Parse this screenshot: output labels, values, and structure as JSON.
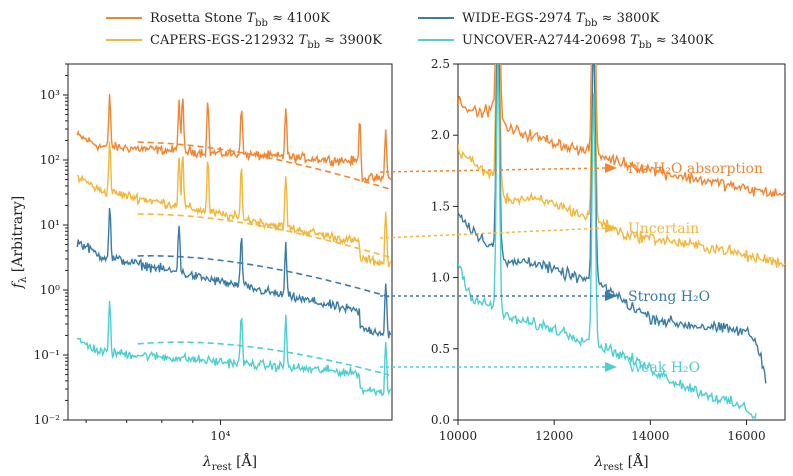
{
  "chart_data": [
    {
      "panel": "left",
      "type": "line",
      "xscale": "log",
      "yscale": "log",
      "xlabel": "λ_rest [Å]",
      "ylabel": "f_λ [Arbitrary]",
      "xlim": [
        5600,
        19200
      ],
      "ylim": [
        0.01,
        3000
      ],
      "xtick_labels": [
        {
          "value": 10000,
          "label": "10⁴"
        }
      ],
      "ytick_labels": [
        {
          "value": 0.01,
          "label": "10⁻²"
        },
        {
          "value": 0.1,
          "label": "10⁻¹"
        },
        {
          "value": 1,
          "label": "10⁰"
        },
        {
          "value": 10,
          "label": "10¹"
        },
        {
          "value": 100,
          "label": "10²"
        },
        {
          "value": 1000,
          "label": "10³"
        }
      ],
      "series": [
        {
          "name": "Rosetta Stone",
          "color": "#f4842f",
          "continuum_level": 170,
          "continuum_slope": -0.35,
          "blackbody_peak": 180,
          "blackbody_T_K": 4100,
          "emission_lines_A": [
            6563,
            8542,
            8662,
            9531,
            10830,
            12820,
            17000,
            18751
          ]
        },
        {
          "name": "CAPERS-EGS-212932",
          "color": "#f4b63b",
          "continuum_level": 40,
          "continuum_slope": -1.2,
          "blackbody_peak": 14,
          "blackbody_T_K": 3900,
          "emission_lines_A": [
            6563,
            8542,
            8662,
            9531,
            10830,
            12820,
            18751
          ]
        },
        {
          "name": "WIDE-EGS-2974",
          "color": "#3a7ca5",
          "continuum_level": 4,
          "continuum_slope": -1.3,
          "blackbody_peak": 3.2,
          "blackbody_T_K": 3800,
          "emission_lines_A": [
            6563,
            8542,
            10830,
            12820,
            18751
          ]
        },
        {
          "name": "UNCOVER-A2744-20698",
          "color": "#4ccfd0",
          "continuum_level": 0.12,
          "continuum_slope": -0.5,
          "blackbody_peak": 0.15,
          "blackbody_T_K": 3400,
          "emission_lines_A": [
            6563,
            10830,
            12820,
            18751
          ]
        }
      ]
    },
    {
      "panel": "right",
      "type": "line",
      "xlabel": "λ_rest [Å]",
      "xlim": [
        10000,
        16800
      ],
      "ylim": [
        0.0,
        2.5
      ],
      "xticks": [
        10000,
        12000,
        14000,
        16000
      ],
      "yticks": [
        0.0,
        0.5,
        1.0,
        1.5,
        2.0,
        2.5
      ],
      "series": [
        {
          "name": "Rosetta Stone",
          "color": "#f4842f",
          "points": [
            [
              10000,
              2.25
            ],
            [
              10400,
              2.15
            ],
            [
              10800,
              2.2
            ],
            [
              11000,
              2.05
            ],
            [
              11500,
              2.0
            ],
            [
              12000,
              1.95
            ],
            [
              12500,
              1.9
            ],
            [
              13000,
              1.85
            ],
            [
              13500,
              1.8
            ],
            [
              14000,
              1.76
            ],
            [
              14500,
              1.72
            ],
            [
              15000,
              1.69
            ],
            [
              15500,
              1.66
            ],
            [
              16000,
              1.62
            ],
            [
              16800,
              1.58
            ]
          ],
          "emission_lines_A": [
            10830,
            12820
          ]
        },
        {
          "name": "CAPERS-EGS-212932",
          "color": "#f4b63b",
          "points": [
            [
              10000,
              1.9
            ],
            [
              10400,
              1.78
            ],
            [
              10800,
              1.7
            ],
            [
              11000,
              1.55
            ],
            [
              11500,
              1.55
            ],
            [
              12000,
              1.52
            ],
            [
              12500,
              1.45
            ],
            [
              13000,
              1.38
            ],
            [
              13500,
              1.3
            ],
            [
              14000,
              1.28
            ],
            [
              14500,
              1.25
            ],
            [
              15000,
              1.22
            ],
            [
              15500,
              1.2
            ],
            [
              16000,
              1.15
            ],
            [
              16800,
              1.1
            ]
          ],
          "emission_lines_A": [
            10830,
            12820
          ]
        },
        {
          "name": "WIDE-EGS-2974",
          "color": "#3a7ca5",
          "points": [
            [
              10000,
              1.45
            ],
            [
              10400,
              1.3
            ],
            [
              10800,
              1.2
            ],
            [
              11000,
              1.1
            ],
            [
              11500,
              1.12
            ],
            [
              12000,
              1.05
            ],
            [
              12500,
              1.0
            ],
            [
              13000,
              0.95
            ],
            [
              13500,
              0.82
            ],
            [
              14000,
              0.72
            ],
            [
              14500,
              0.68
            ],
            [
              15000,
              0.66
            ],
            [
              15500,
              0.64
            ],
            [
              16000,
              0.62
            ],
            [
              16200,
              0.55
            ],
            [
              16400,
              0.3
            ]
          ],
          "emission_lines_A": [
            10830,
            12820
          ]
        },
        {
          "name": "UNCOVER-A2744-20698",
          "color": "#4ccfd0",
          "points": [
            [
              10000,
              1.1
            ],
            [
              10300,
              0.85
            ],
            [
              10800,
              0.78
            ],
            [
              11000,
              0.72
            ],
            [
              11500,
              0.68
            ],
            [
              12000,
              0.64
            ],
            [
              12500,
              0.58
            ],
            [
              13000,
              0.52
            ],
            [
              13500,
              0.44
            ],
            [
              14000,
              0.36
            ],
            [
              14500,
              0.27
            ],
            [
              15000,
              0.2
            ],
            [
              15500,
              0.14
            ],
            [
              16000,
              0.08
            ],
            [
              16200,
              0.02
            ]
          ],
          "emission_lines_A": [
            10830,
            12820
          ]
        }
      ]
    }
  ],
  "legend": {
    "placement": "top",
    "entries": [
      {
        "name": "Rosetta Stone",
        "temp_label": "4100K",
        "color": "#f4842f"
      },
      {
        "name": "CAPERS-EGS-212932",
        "temp_label": "3900K",
        "color": "#f4b63b"
      },
      {
        "name": "WIDE-EGS-2974",
        "temp_label": "3800K",
        "color": "#3a7ca5"
      },
      {
        "name": "UNCOVER-A2744-20698",
        "temp_label": "3400K",
        "color": "#4ccfd0"
      }
    ]
  },
  "annotations": [
    {
      "text": "No H₂O absorption",
      "color": "#f4842f"
    },
    {
      "text": "Uncertain",
      "color": "#f4b63b"
    },
    {
      "text": "Strong H₂O",
      "color": "#3a7ca5"
    },
    {
      "text": "Weak H₂O",
      "color": "#4ccfd0"
    }
  ],
  "axis_text": {
    "lambda_symbol": "λ",
    "rest_subscript": "rest",
    "unit": "[Å]",
    "f_symbol": "f",
    "lambda_subscript": "λ",
    "arbitrary": "[Arbitrary]",
    "tbb_T": "T",
    "tbb_subscript": "bb",
    "approx": "≈"
  }
}
